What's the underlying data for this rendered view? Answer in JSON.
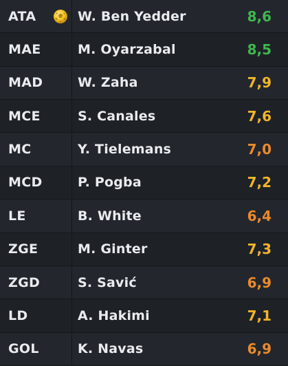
{
  "colors": {
    "high": "#3fb84e",
    "mid": "#f2b52a",
    "low": "#ea8a2c"
  },
  "players": [
    {
      "position": "ATA",
      "name": "W. Ben Yedder",
      "rating": "8,6",
      "tier": "high",
      "icon": "golden-ball-icon"
    },
    {
      "position": "MAE",
      "name": "M. Oyarzabal",
      "rating": "8,5",
      "tier": "high"
    },
    {
      "position": "MAD",
      "name": "W. Zaha",
      "rating": "7,9",
      "tier": "mid"
    },
    {
      "position": "MCE",
      "name": "S. Canales",
      "rating": "7,6",
      "tier": "mid"
    },
    {
      "position": "MC",
      "name": "Y. Tielemans",
      "rating": "7,0",
      "tier": "low"
    },
    {
      "position": "MCD",
      "name": "P. Pogba",
      "rating": "7,2",
      "tier": "mid"
    },
    {
      "position": "LE",
      "name": "B. White",
      "rating": "6,4",
      "tier": "low"
    },
    {
      "position": "ZGE",
      "name": "M. Ginter",
      "rating": "7,3",
      "tier": "mid"
    },
    {
      "position": "ZGD",
      "name": "S. Savić",
      "rating": "6,9",
      "tier": "low"
    },
    {
      "position": "LD",
      "name": "A. Hakimi",
      "rating": "7,1",
      "tier": "mid"
    },
    {
      "position": "GOL",
      "name": "K. Navas",
      "rating": "6,9",
      "tier": "low"
    }
  ]
}
